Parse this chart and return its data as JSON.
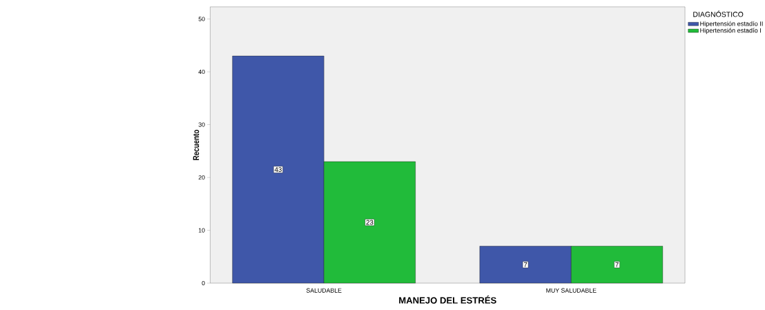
{
  "chart_data": {
    "type": "bar",
    "xlabel": "MANEJO DEL ESTRÉS",
    "ylabel": "Recuento",
    "legend_title": "DIAGNÓSTICO",
    "categories": [
      "SALUDABLE",
      "MUY SALUDABLE"
    ],
    "series": [
      {
        "name": "Hipertensión estadío II",
        "color": "#3f57a9",
        "values": [
          43,
          7
        ]
      },
      {
        "name": "Hipertensión estadío I",
        "color": "#21bb3a",
        "values": [
          23,
          7
        ]
      }
    ],
    "ylim": [
      0,
      52.3
    ],
    "yticks": [
      0,
      10,
      20,
      30,
      40,
      50
    ],
    "data_labels": true,
    "legend": "top right",
    "grid": false
  }
}
